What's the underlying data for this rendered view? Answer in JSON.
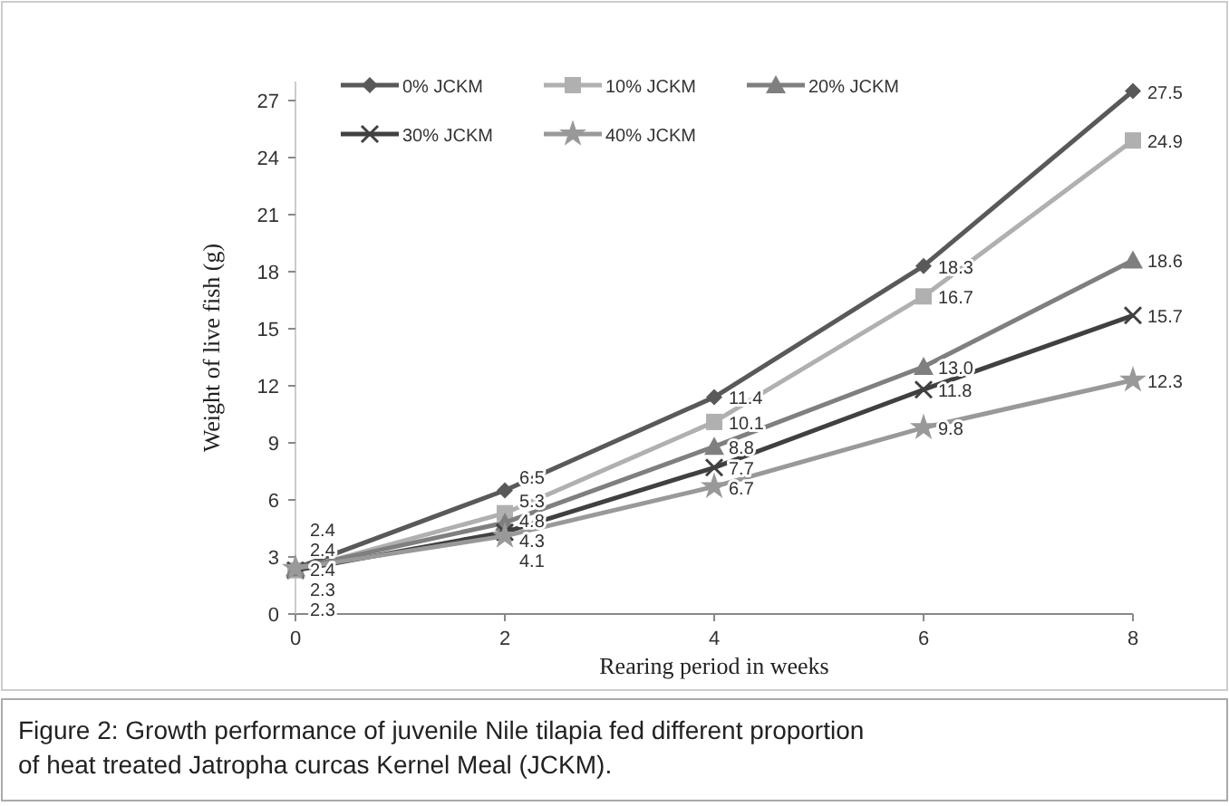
{
  "chart_data": {
    "type": "line",
    "xlabel": "Rearing period in weeks",
    "ylabel": "Weight of live fish (g)",
    "x": [
      0,
      2,
      4,
      6,
      8
    ],
    "xlim": [
      0,
      8
    ],
    "xticks": [
      0,
      2,
      4,
      6,
      8
    ],
    "ylim": [
      0,
      28
    ],
    "yticks": [
      0,
      3,
      6,
      9,
      12,
      15,
      18,
      21,
      24,
      27
    ],
    "grid": false,
    "legend": "top left",
    "series": [
      {
        "name": "0% JCKM",
        "color": "#595959",
        "marker": "diamond",
        "values": [
          2.4,
          6.5,
          11.4,
          18.3,
          27.5
        ],
        "value_labels": [
          "2.4",
          "6.5",
          "11.4",
          "18.3",
          "27.5"
        ]
      },
      {
        "name": "10% JCKM",
        "color": "#b0b0b0",
        "marker": "square",
        "values": [
          2.3,
          5.3,
          10.1,
          16.7,
          24.9
        ],
        "value_labels": [
          "2.3",
          "5.3",
          "10.1",
          "16.7",
          "24.9"
        ]
      },
      {
        "name": "20% JCKM",
        "color": "#7f7f7f",
        "marker": "triangle",
        "values": [
          2.4,
          4.8,
          8.8,
          13.0,
          18.6
        ],
        "value_labels": [
          "2.4",
          "4.8",
          "8.8",
          "13.0",
          "18.6"
        ]
      },
      {
        "name": "30% JCKM",
        "color": "#404040",
        "marker": "cross",
        "values": [
          2.3,
          4.3,
          7.7,
          11.8,
          15.7
        ],
        "value_labels": [
          "2.3",
          "4.3",
          "7.7",
          "11.8",
          "15.7"
        ]
      },
      {
        "name": "40% JCKM",
        "color": "#999999",
        "marker": "star",
        "values": [
          2.4,
          4.1,
          6.7,
          9.8,
          12.3
        ],
        "value_labels": [
          "2.4",
          "4.1",
          "6.7",
          "9.8",
          "12.3"
        ]
      }
    ],
    "annotations": [
      "Figure 2: Growth performance of juvenile Nile tilapia fed different proportion of heat treated Jatropha curcas Kernel Meal (JCKM)."
    ]
  }
}
